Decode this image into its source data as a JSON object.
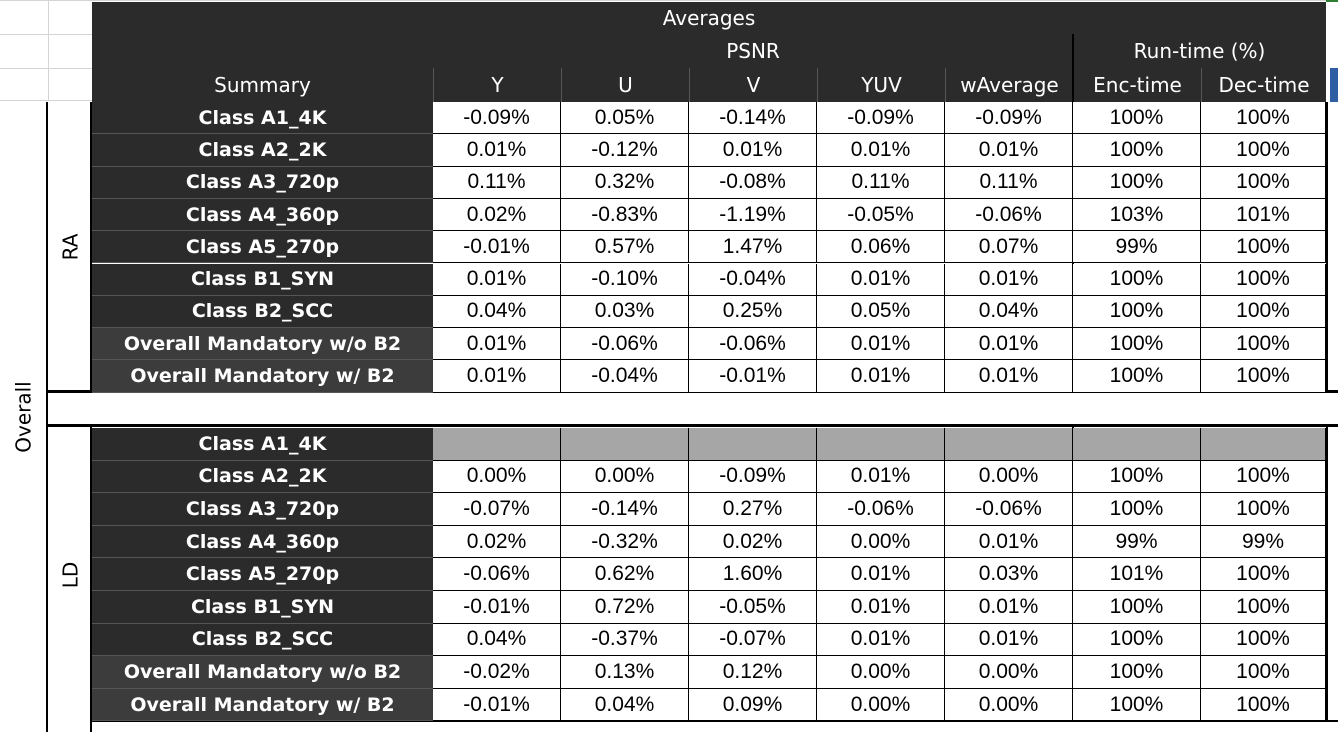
{
  "header": {
    "title": "Averages",
    "psnr_label": "PSNR",
    "runtime_label": "Run-time (%)",
    "summary_label": "Summary",
    "columns": [
      "Y",
      "U",
      "V",
      "YUV",
      "wAverage",
      "Enc-time",
      "Dec-time"
    ]
  },
  "group_label": "Overall",
  "colors": {
    "header_bg": "#2b2b2b",
    "empty_cell": "#a6a6a6",
    "accent_blue": "#2e5fa3",
    "accent_green": "#2e7d32"
  },
  "sections": [
    {
      "name": "RA",
      "rows": [
        {
          "label": "Class A1_4K",
          "values": [
            "-0.09%",
            "0.05%",
            "-0.14%",
            "-0.09%",
            "-0.09%",
            "100%",
            "100%"
          ]
        },
        {
          "label": "Class A2_2K",
          "values": [
            "0.01%",
            "-0.12%",
            "0.01%",
            "0.01%",
            "0.01%",
            "100%",
            "100%"
          ]
        },
        {
          "label": "Class A3_720p",
          "values": [
            "0.11%",
            "0.32%",
            "-0.08%",
            "0.11%",
            "0.11%",
            "100%",
            "100%"
          ]
        },
        {
          "label": "Class A4_360p",
          "values": [
            "0.02%",
            "-0.83%",
            "-1.19%",
            "-0.05%",
            "-0.06%",
            "103%",
            "101%"
          ]
        },
        {
          "label": "Class A5_270p",
          "values": [
            "-0.01%",
            "0.57%",
            "1.47%",
            "0.06%",
            "0.07%",
            "99%",
            "100%"
          ]
        },
        {
          "label": "Class B1_SYN",
          "values": [
            "0.01%",
            "-0.10%",
            "-0.04%",
            "0.01%",
            "0.01%",
            "100%",
            "100%"
          ]
        },
        {
          "label": "Class B2_SCC",
          "values": [
            "0.04%",
            "0.03%",
            "0.25%",
            "0.05%",
            "0.04%",
            "100%",
            "100%"
          ]
        },
        {
          "label": "Overall Mandatory w/o B2",
          "values": [
            "0.01%",
            "-0.06%",
            "-0.06%",
            "0.01%",
            "0.01%",
            "100%",
            "100%"
          ]
        },
        {
          "label": "Overall Mandatory w/ B2",
          "values": [
            "0.01%",
            "-0.04%",
            "-0.01%",
            "0.01%",
            "0.01%",
            "100%",
            "100%"
          ]
        }
      ]
    },
    {
      "name": "LD",
      "rows": [
        {
          "label": "Class A1_4K",
          "values": [
            "",
            "",
            "",
            "",
            "",
            "",
            ""
          ]
        },
        {
          "label": "Class A2_2K",
          "values": [
            "0.00%",
            "0.00%",
            "-0.09%",
            "0.01%",
            "0.00%",
            "100%",
            "100%"
          ]
        },
        {
          "label": "Class A3_720p",
          "values": [
            "-0.07%",
            "-0.14%",
            "0.27%",
            "-0.06%",
            "-0.06%",
            "100%",
            "100%"
          ]
        },
        {
          "label": "Class A4_360p",
          "values": [
            "0.02%",
            "-0.32%",
            "0.02%",
            "0.00%",
            "0.01%",
            "99%",
            "99%"
          ]
        },
        {
          "label": "Class A5_270p",
          "values": [
            "-0.06%",
            "0.62%",
            "1.60%",
            "0.01%",
            "0.03%",
            "101%",
            "100%"
          ]
        },
        {
          "label": "Class B1_SYN",
          "values": [
            "-0.01%",
            "0.72%",
            "-0.05%",
            "0.01%",
            "0.01%",
            "100%",
            "100%"
          ]
        },
        {
          "label": "Class B2_SCC",
          "values": [
            "0.04%",
            "-0.37%",
            "-0.07%",
            "0.01%",
            "0.01%",
            "100%",
            "100%"
          ]
        },
        {
          "label": "Overall Mandatory w/o B2",
          "values": [
            "-0.02%",
            "0.13%",
            "0.12%",
            "0.00%",
            "0.00%",
            "100%",
            "100%"
          ]
        },
        {
          "label": "Overall Mandatory w/ B2",
          "values": [
            "-0.01%",
            "0.04%",
            "0.09%",
            "0.00%",
            "0.00%",
            "100%",
            "100%"
          ]
        }
      ]
    }
  ]
}
